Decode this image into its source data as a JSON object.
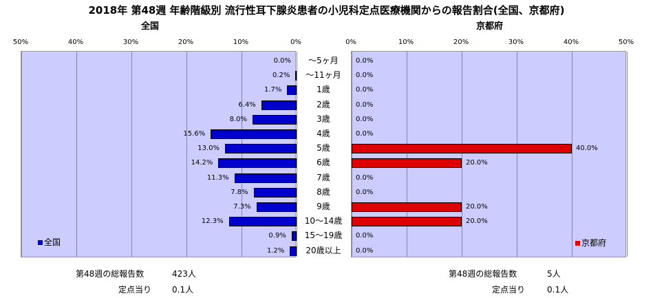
{
  "title": "2018年 第48週 年齢階級別 流行性耳下腺炎患者の小児科定点医療機関からの報告割合(全国、京都府)",
  "chart_data": {
    "type": "bar",
    "orientation": "horizontal-butterfly",
    "categories": [
      "～5ヶ月",
      "～11ヶ月",
      "1歳",
      "2歳",
      "3歳",
      "4歳",
      "5歳",
      "6歳",
      "7歳",
      "8歳",
      "9歳",
      "10～14歳",
      "15～19歳",
      "20歳以上"
    ],
    "axis_ticks": [
      "50%",
      "40%",
      "30%",
      "20%",
      "10%",
      "0%"
    ],
    "axis_ticks_right": [
      "0%",
      "10%",
      "20%",
      "30%",
      "40%",
      "50%"
    ],
    "xlim": [
      0,
      50
    ],
    "series": [
      {
        "name": "全国",
        "subtitle": "全国",
        "color": "#0000cc",
        "values": [
          0.0,
          0.2,
          1.7,
          6.4,
          8.0,
          15.6,
          13.0,
          14.2,
          11.3,
          7.8,
          7.3,
          12.3,
          0.9,
          1.2
        ],
        "labels": [
          "0.0%",
          "0.2%",
          "1.7%",
          "6.4%",
          "8.0%",
          "15.6%",
          "13.0%",
          "14.2%",
          "11.3%",
          "7.8%",
          "7.3%",
          "12.3%",
          "0.9%",
          "1.2%"
        ]
      },
      {
        "name": "京都府",
        "subtitle": "京都府",
        "color": "#dd0000",
        "values": [
          0.0,
          0.0,
          0.0,
          0.0,
          0.0,
          0.0,
          40.0,
          20.0,
          0.0,
          0.0,
          20.0,
          20.0,
          0.0,
          0.0
        ],
        "labels": [
          "0.0%",
          "0.0%",
          "0.0%",
          "0.0%",
          "0.0%",
          "0.0%",
          "40.0%",
          "20.0%",
          "0.0%",
          "0.0%",
          "20.0%",
          "20.0%",
          "0.0%",
          "0.0%"
        ]
      }
    ],
    "grid": true,
    "legend_placement": "bottom-inside"
  },
  "footer": {
    "national_total_label": "第48週の総報告数",
    "national_total_value": "423人",
    "national_per_label": "定点当り",
    "national_per_value": "0.1人",
    "kyoto_total_label": "第48週の総報告数",
    "kyoto_total_value": "5人",
    "kyoto_per_label": "定点当り",
    "kyoto_per_value": "0.1人"
  }
}
